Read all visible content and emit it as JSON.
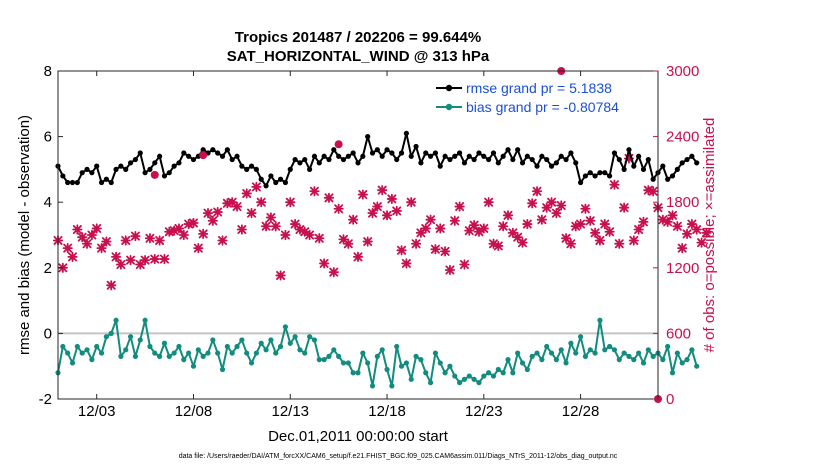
{
  "chart_data": {
    "type": "line",
    "title": "Tropics 201487 / 202206 = 99.644%",
    "subtitle": "SAT_HORIZONTAL_WIND @ 313 hPa",
    "xlabel": "Dec.01,2011 00:00:00 start",
    "ylabel": "rmse and bias (model - observation)",
    "ylabel_right": "# of obs: o=possible; ×=assimilated",
    "footnote": "data file: /Users/raeder/DAI/ATM_forcXX/CAM6_setup/f.e21.FHIST_BGC.f09_025.CAM6assim.011/Diags_NTrS_2011-12/obs_diag_output.nc",
    "xlim": [
      1,
      32
    ],
    "ylim": [
      -2,
      8
    ],
    "ylim_right": [
      0,
      3000
    ],
    "x_ticks": [
      3,
      8,
      13,
      18,
      23,
      28
    ],
    "x_tick_labels": [
      "12/03",
      "12/08",
      "12/13",
      "12/18",
      "12/23",
      "12/28"
    ],
    "y_ticks": [
      -2,
      0,
      2,
      4,
      6,
      8
    ],
    "y_tick_labels": [
      "-2",
      "0",
      "2",
      "4",
      "6",
      "8"
    ],
    "y_right_ticks": [
      0,
      600,
      1200,
      1800,
      2400,
      3000
    ],
    "y_right_tick_labels": [
      "0",
      "600",
      "1200",
      "1800",
      "2400",
      "3000"
    ],
    "zero_line": 0,
    "series": [
      {
        "name": "rmse grand pr = 5.1838",
        "axis": "left",
        "color": "#000000",
        "marker": "circle",
        "x_start": 1.0,
        "x_step": 0.25,
        "values": [
          5.1,
          4.8,
          4.6,
          4.6,
          4.6,
          4.9,
          5.0,
          4.9,
          5.1,
          4.6,
          4.7,
          4.6,
          5.0,
          5.1,
          5.0,
          5.2,
          5.3,
          5.5,
          4.9,
          5.0,
          5.2,
          5.4,
          4.8,
          4.9,
          5.1,
          5.2,
          5.5,
          5.4,
          5.3,
          5.4,
          5.6,
          5.5,
          5.6,
          5.5,
          5.4,
          5.6,
          5.3,
          5.4,
          5.1,
          5.0,
          5.1,
          5.0,
          4.7,
          4.5,
          4.8,
          4.6,
          4.7,
          4.6,
          5.0,
          5.3,
          5.2,
          5.3,
          5.0,
          5.4,
          5.2,
          5.4,
          5.3,
          5.6,
          5.4,
          5.3,
          5.4,
          5.5,
          5.2,
          5.4,
          6.0,
          5.5,
          5.6,
          5.4,
          5.6,
          5.5,
          5.3,
          5.5,
          6.1,
          5.4,
          5.7,
          5.2,
          5.5,
          5.4,
          5.5,
          5.1,
          5.4,
          5.3,
          5.4,
          5.5,
          5.2,
          5.4,
          5.3,
          5.5,
          5.4,
          5.3,
          5.5,
          5.2,
          5.4,
          5.6,
          5.3,
          5.6,
          5.2,
          5.4,
          5.3,
          5.1,
          5.4,
          5.3,
          5.1,
          5.2,
          5.4,
          5.3,
          5.5,
          5.2,
          4.6,
          4.8,
          4.9,
          4.8,
          4.9,
          4.9,
          4.8,
          5.5,
          5.3,
          5.0,
          5.6,
          5.1,
          5.4,
          5.0,
          5.3,
          4.7,
          4.9,
          5.1,
          4.7,
          4.8,
          5.0,
          5.2,
          5.3,
          5.4,
          5.2
        ]
      },
      {
        "name": "bias grand pr = -0.80784",
        "axis": "left",
        "color": "#128c7e",
        "marker": "circle",
        "x_start": 1.0,
        "x_step": 0.25,
        "values": [
          -1.2,
          -0.4,
          -0.6,
          -0.9,
          -0.4,
          -0.6,
          -0.5,
          -0.8,
          -0.4,
          -0.6,
          -0.1,
          0.0,
          0.4,
          -0.7,
          -0.5,
          -0.1,
          -0.7,
          -0.2,
          0.4,
          -0.4,
          -0.6,
          -0.7,
          -0.3,
          -0.7,
          -0.6,
          -0.4,
          -0.8,
          -0.6,
          -1.0,
          -0.5,
          -0.7,
          -0.6,
          -0.2,
          -0.6,
          -1.1,
          -0.4,
          -0.6,
          -0.4,
          -0.2,
          -0.6,
          -0.9,
          -0.6,
          -0.3,
          -0.5,
          -0.2,
          -0.6,
          -0.4,
          0.2,
          -0.3,
          -0.1,
          -0.5,
          -0.6,
          -0.1,
          -0.2,
          -0.8,
          -0.8,
          -0.7,
          -0.5,
          -0.7,
          -0.9,
          -0.9,
          -1.2,
          -1.2,
          -0.6,
          -0.9,
          -1.6,
          -0.7,
          -0.5,
          -1.1,
          -1.6,
          -0.4,
          -1.0,
          -0.9,
          -1.4,
          -0.7,
          -0.8,
          -1.2,
          -1.5,
          -0.6,
          -0.9,
          -1.2,
          -1.0,
          -1.3,
          -1.5,
          -1.4,
          -1.3,
          -1.4,
          -1.5,
          -1.3,
          -1.2,
          -1.3,
          -1.1,
          -1.2,
          -0.8,
          -1.2,
          -0.6,
          -0.9,
          -1.1,
          -0.7,
          -0.6,
          -0.8,
          -0.4,
          -0.6,
          -0.8,
          -0.5,
          -0.9,
          -0.3,
          -0.6,
          -0.1,
          -0.7,
          -0.5,
          -0.6,
          0.4,
          -0.5,
          -0.4,
          -0.5,
          -0.8,
          -0.6,
          -0.7,
          -0.8,
          -0.6,
          -0.9,
          -0.5,
          -0.7,
          -0.6,
          -0.8,
          -0.4,
          -1.2,
          -0.6,
          -0.9,
          -0.8,
          -0.5,
          -1.0
        ]
      },
      {
        "name": "obs possible",
        "axis": "right",
        "color": "#c8104f",
        "marker": "circle",
        "x": [
          6.0,
          15.5,
          8.5,
          27.0,
          32.0
        ],
        "values": [
          2050,
          2330,
          2230,
          3000,
          0
        ]
      },
      {
        "name": "obs assimilated",
        "axis": "right",
        "color": "#c8104f",
        "marker": "cross",
        "x_start": 1.0,
        "x_step": 0.25,
        "values": [
          1450,
          1200,
          1380,
          1300,
          1550,
          1480,
          1420,
          1500,
          1560,
          1380,
          1440,
          1040,
          1300,
          1230,
          1450,
          1270,
          1490,
          1230,
          1270,
          1470,
          1280,
          1450,
          1280,
          1530,
          1540,
          1560,
          1500,
          1600,
          1610,
          1380,
          1510,
          1700,
          1630,
          1710,
          1450,
          1790,
          1800,
          1760,
          1550,
          1880,
          1700,
          1940,
          1800,
          1580,
          1660,
          1580,
          1130,
          1500,
          1800,
          1600,
          1550,
          1530,
          1500,
          1900,
          1470,
          1240,
          1840,
          1160,
          1740,
          1460,
          1420,
          1640,
          1300,
          1870,
          1440,
          1700,
          1760,
          1910,
          1680,
          1830,
          1720,
          1360,
          1240,
          1800,
          1420,
          1520,
          1560,
          1640,
          1370,
          1560,
          1350,
          1180,
          1630,
          1760,
          1230,
          1540,
          1590,
          1530,
          1560,
          1800,
          1420,
          1400,
          1580,
          1680,
          1520,
          1480,
          1430,
          1600,
          1790,
          1900,
          1640,
          1750,
          1800,
          1700,
          1770,
          1470,
          1420,
          1580,
          1600,
          1740,
          1630,
          1520,
          1450,
          1600,
          1530,
          1960,
          1420,
          1750,
          2200,
          1450,
          1550,
          1620,
          1910,
          1900,
          1750,
          1640,
          1620,
          1680,
          1580,
          1380,
          1510,
          1600,
          1550,
          1430,
          1520
        ]
      }
    ]
  }
}
